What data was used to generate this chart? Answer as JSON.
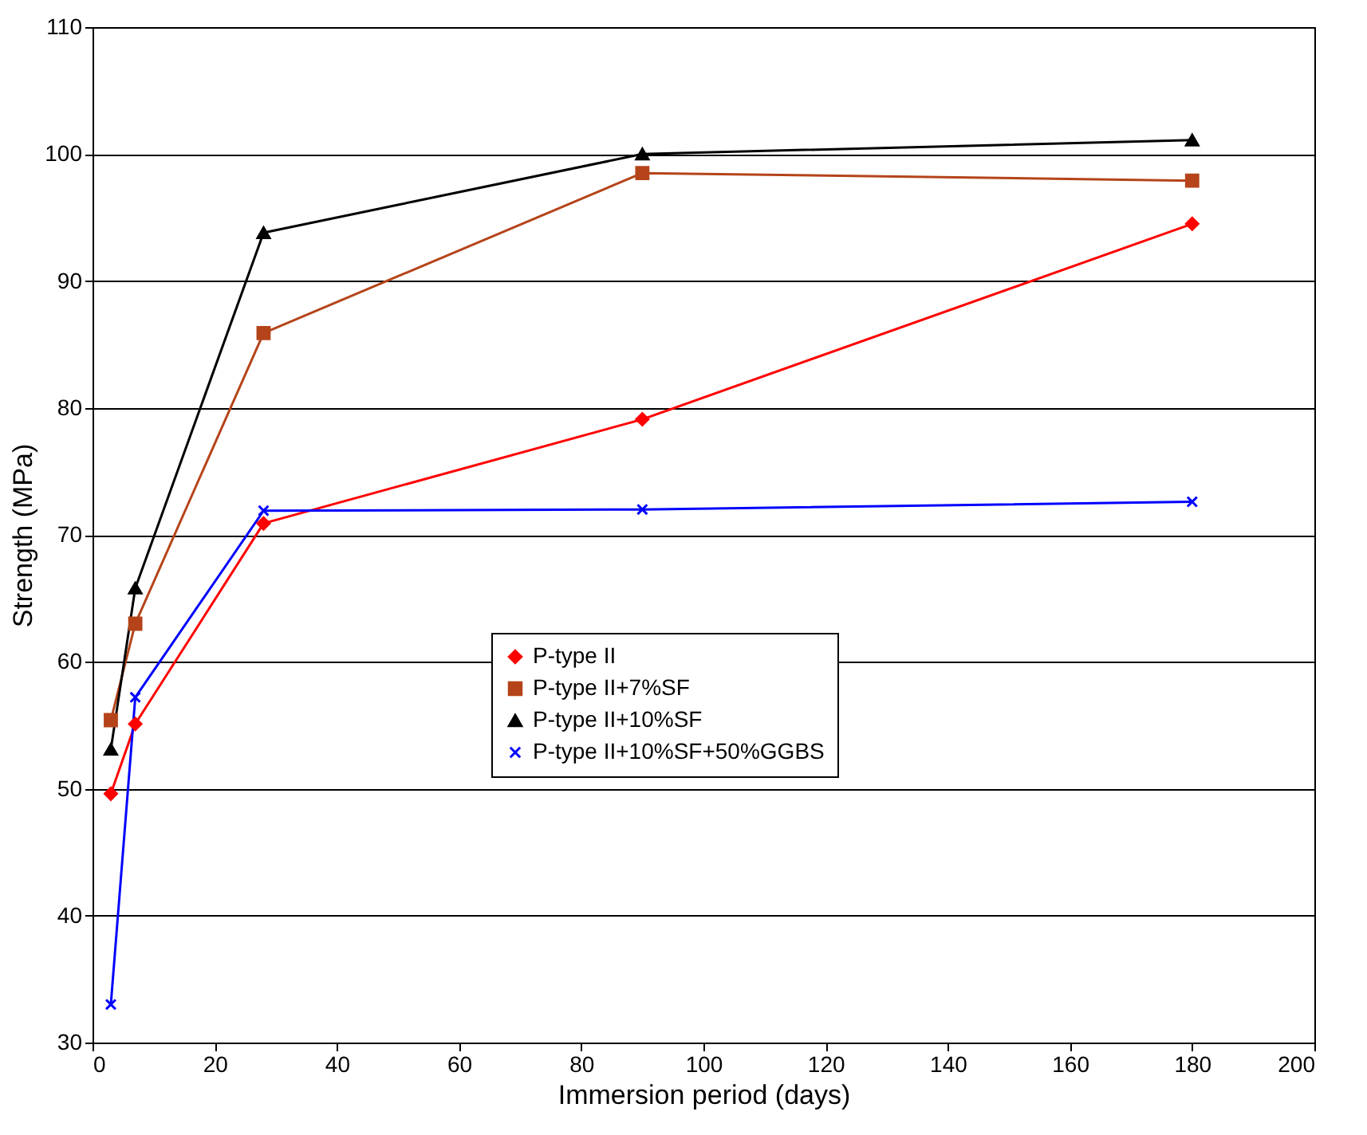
{
  "chart_data": {
    "type": "line",
    "xlabel": "Immersion period (days)",
    "ylabel": "Strength (MPa)",
    "xlim": [
      0,
      200
    ],
    "xticks": [
      0,
      20,
      40,
      60,
      80,
      100,
      120,
      140,
      160,
      180,
      200
    ],
    "ylim": [
      30,
      110
    ],
    "yticks": [
      30,
      40,
      50,
      60,
      70,
      80,
      90,
      100,
      110
    ],
    "grid": "y",
    "legend": "bottom",
    "line_style": "solid",
    "x": [
      3,
      7,
      28,
      90,
      180
    ],
    "series": [
      {
        "name": "P-type II",
        "color": "#ff0000",
        "marker": "diamond",
        "values": [
          49.6,
          55.1,
          70.9,
          79.1,
          94.5
        ]
      },
      {
        "name": "P-type II+7%SF",
        "color": "#b5441a",
        "marker": "square",
        "values": [
          55.4,
          63.0,
          85.9,
          98.5,
          97.9
        ]
      },
      {
        "name": "P-type II+10%SF",
        "color": "#000000",
        "marker": "triangle",
        "values": [
          53.1,
          65.8,
          93.8,
          100.0,
          101.1
        ]
      },
      {
        "name": "P-type II+10%SF+50%GGBS",
        "color": "#0000ff",
        "marker": "cross",
        "values": [
          33.0,
          57.2,
          71.9,
          72.0,
          72.6
        ]
      }
    ]
  }
}
